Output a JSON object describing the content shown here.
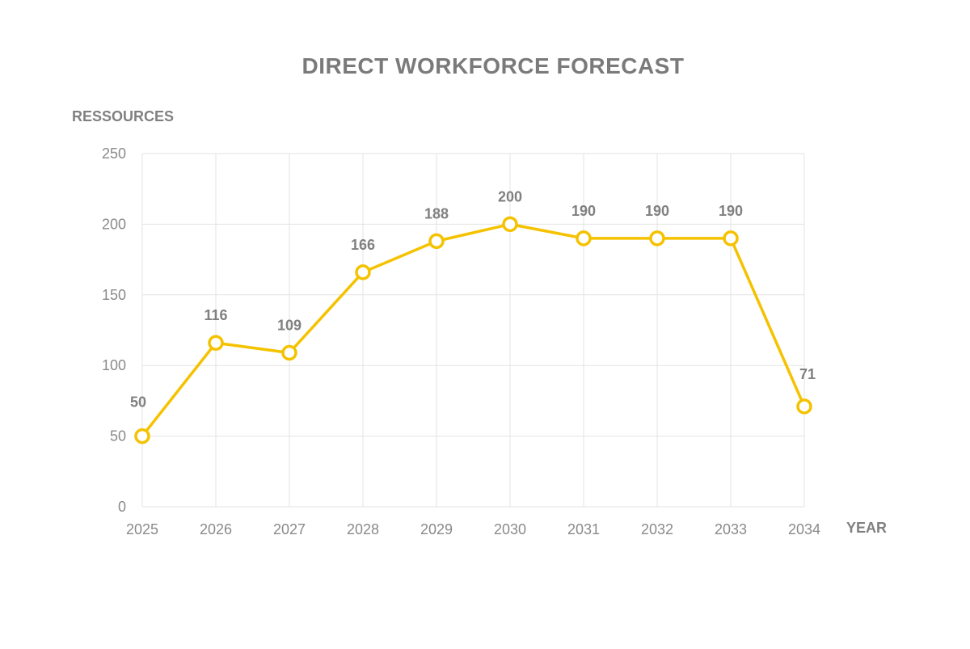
{
  "chart_data": {
    "type": "line",
    "title": "DIRECT WORKFORCE FORECAST",
    "xlabel": "YEAR",
    "ylabel": "RESSOURCES",
    "categories": [
      "2025",
      "2026",
      "2027",
      "2028",
      "2029",
      "2030",
      "2031",
      "2032",
      "2033",
      "2034"
    ],
    "series": [
      {
        "values": [
          50,
          116,
          109,
          166,
          188,
          200,
          190,
          190,
          190,
          71
        ]
      }
    ],
    "ylim": [
      0,
      250
    ],
    "yticks": [
      0,
      50,
      100,
      150,
      200,
      250
    ],
    "grid": true,
    "data_labels": true,
    "colors": {
      "line": "#f5c200",
      "marker_fill": "#ffffff",
      "grid": "#e3e3e3",
      "text": "#808080"
    }
  }
}
